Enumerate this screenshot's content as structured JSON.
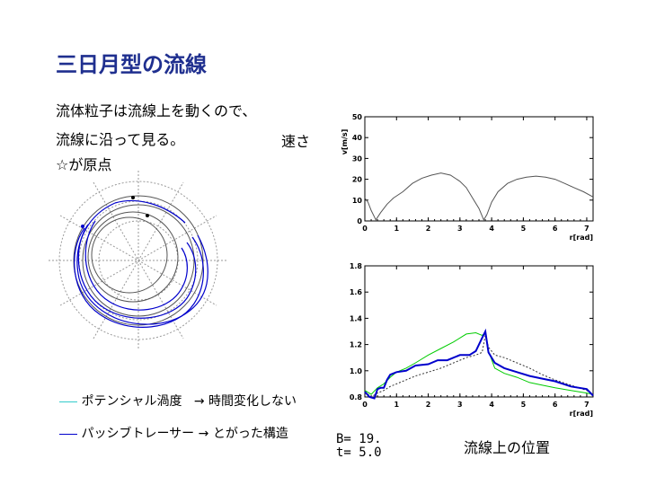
{
  "slide": {
    "title": "三日月型の流線",
    "line1": "流体粒子は流線上を動くので、",
    "line2": "流線に沿って見る。",
    "line3": "☆が原点",
    "speed_label": "速さ",
    "legend1": "ポテンシャル渦度",
    "legend1_note": "→ 時間変化しない",
    "legend2": "パッシブトレーサー",
    "legend2_note": "→ とがった構造",
    "param_b": "B=  19.",
    "param_t": "t=   5.0",
    "position_label": "流線上の位置",
    "colors": {
      "title": "#1f2f8f",
      "pv": "#33cccc",
      "tracer": "#0000cc",
      "green": "#00cc00"
    }
  },
  "chart_data": [
    {
      "type": "line",
      "title": "",
      "xlabel": "r[rad]",
      "ylabel": "v[m/s]",
      "xlim": [
        0,
        7.2
      ],
      "ylim": [
        0,
        50
      ],
      "xticks": [
        "0",
        "1",
        "2",
        "3",
        "4",
        "5",
        "6",
        "7"
      ],
      "yticks": [
        "0",
        "10",
        "20",
        "30",
        "40",
        "50"
      ],
      "series": [
        {
          "name": "",
          "x": [
            0,
            0.1,
            0.2,
            0.35,
            0.5,
            0.7,
            0.9,
            1.2,
            1.5,
            1.8,
            2.1,
            2.4,
            2.7,
            3.0,
            3.2,
            3.4,
            3.6,
            3.75,
            3.85,
            4.0,
            4.2,
            4.5,
            4.8,
            5.1,
            5.4,
            5.7,
            6.0,
            6.3,
            6.6,
            6.9,
            7.2
          ],
          "y": [
            11,
            9,
            5,
            0.5,
            4,
            8,
            11,
            14,
            18,
            20.5,
            22,
            23,
            22,
            19,
            16,
            11,
            6,
            0.5,
            3,
            9,
            14,
            18,
            20,
            21,
            21.5,
            21,
            20,
            18,
            16,
            14,
            11.5
          ]
        }
      ]
    },
    {
      "type": "line",
      "title": "",
      "xlabel": "r[rad]",
      "ylabel": "",
      "xlim": [
        0,
        7.2
      ],
      "ylim": [
        0.8,
        1.8
      ],
      "xticks": [
        "0",
        "1",
        "2",
        "3",
        "4",
        "5",
        "6",
        "7"
      ],
      "yticks": [
        "0.8",
        "1.0",
        "1.2",
        "1.4",
        "1.6",
        "1.8"
      ],
      "series": [
        {
          "name": "",
          "x": [
            0,
            0.2,
            0.4,
            0.6,
            0.8,
            1.0,
            1.3,
            1.6,
            2.0,
            2.4,
            2.8,
            3.2,
            3.5,
            3.7,
            3.8,
            3.9,
            4.1,
            4.4,
            4.8,
            5.2,
            5.6,
            6.0,
            6.5,
            7.0,
            7.2
          ],
          "y": [
            0.85,
            0.82,
            0.87,
            0.9,
            0.95,
            0.99,
            1.02,
            1.06,
            1.12,
            1.17,
            1.22,
            1.28,
            1.29,
            1.27,
            1.29,
            1.15,
            1.02,
            0.98,
            0.95,
            0.91,
            0.89,
            0.87,
            0.85,
            0.83,
            0.82
          ]
        },
        {
          "name": "",
          "x": [
            0,
            0.2,
            0.4,
            0.6,
            0.8,
            1.0,
            1.3,
            1.6,
            2.0,
            2.4,
            2.8,
            3.2,
            3.5,
            3.7,
            3.8,
            3.9,
            4.1,
            4.4,
            4.8,
            5.2,
            5.6,
            6.0,
            6.5,
            7.0,
            7.2
          ],
          "y": [
            0.84,
            0.8,
            0.83,
            0.85,
            0.88,
            0.9,
            0.93,
            0.96,
            0.99,
            1.02,
            1.06,
            1.1,
            1.12,
            1.14,
            1.27,
            1.18,
            1.12,
            1.1,
            1.06,
            1.02,
            0.97,
            0.93,
            0.89,
            0.85,
            0.82
          ]
        },
        {
          "name": "",
          "x": [
            0,
            0.15,
            0.3,
            0.4,
            0.5,
            0.6,
            0.7,
            0.8,
            1.0,
            1.3,
            1.6,
            2.0,
            2.3,
            2.6,
            3.0,
            3.3,
            3.5,
            3.7,
            3.8,
            3.9,
            4.1,
            4.4,
            4.8,
            5.2,
            5.6,
            6.0,
            6.5,
            7.0,
            7.2
          ],
          "y": [
            0.84,
            0.8,
            0.79,
            0.86,
            0.87,
            0.87,
            0.93,
            0.97,
            0.99,
            1.0,
            1.04,
            1.05,
            1.08,
            1.08,
            1.12,
            1.12,
            1.15,
            1.25,
            1.3,
            1.14,
            1.06,
            1.02,
            0.99,
            0.96,
            0.94,
            0.92,
            0.88,
            0.86,
            0.81
          ]
        }
      ]
    }
  ]
}
